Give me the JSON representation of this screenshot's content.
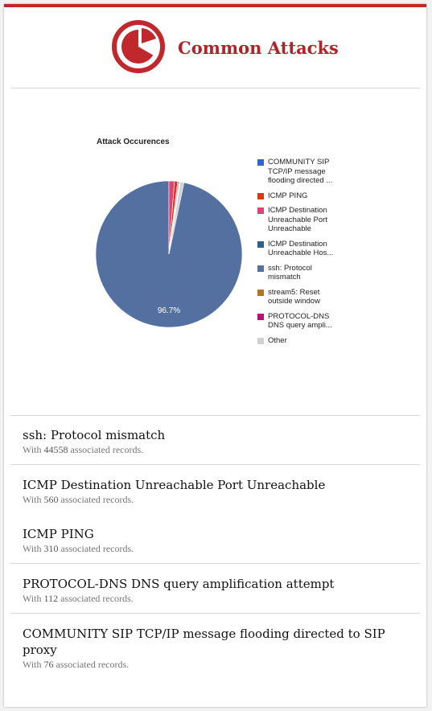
{
  "header": {
    "title": "Common Attacks",
    "logo_icon": "pie-chart-logo-icon",
    "accent_color": "#c0282d"
  },
  "chart_data": {
    "type": "pie",
    "title": "Attack Occurences",
    "legend_position": "right",
    "slices": [
      {
        "label": "ssh: Protocol mismatch",
        "value": 96.7,
        "color": "#5470a1"
      },
      {
        "label": "ICMP Destination Unreachable Port Unreachable",
        "value": 1.2,
        "color": "#dd4477"
      },
      {
        "label": "ICMP PING",
        "value": 0.7,
        "color": "#dc3912"
      },
      {
        "label": "PROTOCOL-DNS DNS query amplification attempt",
        "value": 0.2,
        "color": "#b5117a"
      },
      {
        "label": "COMMUNITY SIP TCP/IP message flooding directed to SIP proxy",
        "value": 0.2,
        "color": "#3366cc"
      },
      {
        "label": "ICMP Destination Unreachable Host Unreachable",
        "value": 0.1,
        "color": "#2f5f8f"
      },
      {
        "label": "stream5: Reset outside window",
        "value": 0.1,
        "color": "#b77322"
      },
      {
        "label": "Other",
        "value": 0.8,
        "color": "#d1d1d1"
      }
    ],
    "slice_labels": [
      "96.7%"
    ]
  },
  "legend": [
    {
      "lines": [
        "COMMUNITY SIP",
        "TCP/IP message",
        "flooding directed ..."
      ],
      "color": "#3366cc"
    },
    {
      "lines": [
        "ICMP PING"
      ],
      "color": "#dc3912"
    },
    {
      "lines": [
        "ICMP Destination",
        "Unreachable Port",
        "Unreachable"
      ],
      "color": "#dd4477"
    },
    {
      "lines": [
        "ICMP Destination",
        "Unreachable Hos..."
      ],
      "color": "#2f5f8f"
    },
    {
      "lines": [
        "ssh: Protocol",
        "mismatch"
      ],
      "color": "#5470a1"
    },
    {
      "lines": [
        "stream5: Reset",
        "outside window"
      ],
      "color": "#b77322"
    },
    {
      "lines": [
        "PROTOCOL-DNS",
        "DNS query ampli..."
      ],
      "color": "#b5117a"
    },
    {
      "lines": [
        "Other"
      ],
      "color": "#d1d1d1"
    }
  ],
  "list": [
    {
      "title": "ssh: Protocol mismatch",
      "prefix": "With ",
      "count": "44558",
      "suffix": " associated records."
    },
    {
      "title": "ICMP Destination Unreachable Port Unreachable",
      "prefix": "With ",
      "count": "560",
      "suffix": " associated records."
    },
    {
      "title": "ICMP PING",
      "prefix": "With ",
      "count": "310",
      "suffix": " associated records."
    },
    {
      "title": "PROTOCOL-DNS DNS query amplification attempt",
      "prefix": "With ",
      "count": "112",
      "suffix": " associated records."
    },
    {
      "title": "COMMUNITY SIP TCP/IP message flooding directed to SIP proxy",
      "prefix": "With ",
      "count": "76",
      "suffix": " associated records."
    }
  ]
}
